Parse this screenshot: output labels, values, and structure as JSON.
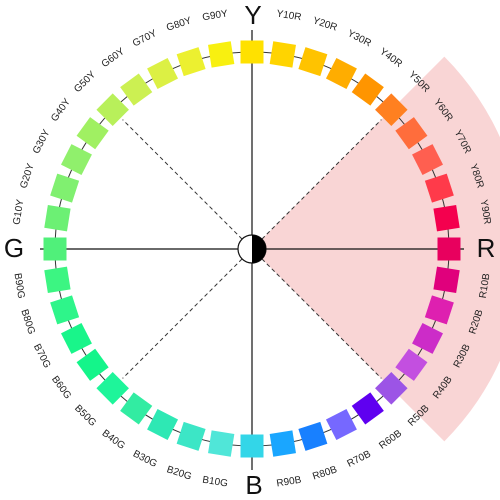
{
  "axes": {
    "top": "Y",
    "right": "R",
    "bottom": "B",
    "left": "G"
  },
  "highlight_sector": {
    "from_hue": "Y50R",
    "to_hue": "R50B",
    "color": "#f9d5d5"
  },
  "hues": [
    {
      "label": "",
      "color": "#ffe100"
    },
    {
      "label": "Y10R",
      "color": "#ffd400"
    },
    {
      "label": "Y20R",
      "color": "#ffc300"
    },
    {
      "label": "Y30R",
      "color": "#ffad00"
    },
    {
      "label": "Y40R",
      "color": "#ff9500"
    },
    {
      "label": "Y50R",
      "color": "#ff8020"
    },
    {
      "label": "Y60R",
      "color": "#ff6d3c"
    },
    {
      "label": "Y70R",
      "color": "#ff5f50"
    },
    {
      "label": "Y80R",
      "color": "#ff3a4a"
    },
    {
      "label": "Y90R",
      "color": "#f4004e"
    },
    {
      "label": "",
      "color": "#e8005e"
    },
    {
      "label": "R10B",
      "color": "#e0007c"
    },
    {
      "label": "R20B",
      "color": "#de20b0"
    },
    {
      "label": "R30B",
      "color": "#cc2cc8"
    },
    {
      "label": "R40B",
      "color": "#c34fe0"
    },
    {
      "label": "R50B",
      "color": "#9c54e6"
    },
    {
      "label": "R60B",
      "color": "#5f00f0"
    },
    {
      "label": "R70B",
      "color": "#7668ff"
    },
    {
      "label": "R80B",
      "color": "#1880ff"
    },
    {
      "label": "R90B",
      "color": "#1aa6ff"
    },
    {
      "label": "",
      "color": "#33d6e8"
    },
    {
      "label": "B10G",
      "color": "#50e6d8"
    },
    {
      "label": "B20G",
      "color": "#3ce6c6"
    },
    {
      "label": "B30G",
      "color": "#2ee8b4"
    },
    {
      "label": "B40G",
      "color": "#32eca2"
    },
    {
      "label": "B50G",
      "color": "#1ef59a"
    },
    {
      "label": "B60G",
      "color": "#14f58a"
    },
    {
      "label": "B70G",
      "color": "#19f58a"
    },
    {
      "label": "B80G",
      "color": "#2ef58a"
    },
    {
      "label": "B90G",
      "color": "#3cf582"
    },
    {
      "label": "",
      "color": "#50f07a"
    },
    {
      "label": "G10Y",
      "color": "#6cf074"
    },
    {
      "label": "G20Y",
      "color": "#80f070"
    },
    {
      "label": "G30Y",
      "color": "#90f06c"
    },
    {
      "label": "G40Y",
      "color": "#a0f062"
    },
    {
      "label": "G50Y",
      "color": "#b8f05a"
    },
    {
      "label": "G60Y",
      "color": "#ccf052"
    },
    {
      "label": "G70Y",
      "color": "#dcf044"
    },
    {
      "label": "G80Y",
      "color": "#ecf030"
    },
    {
      "label": "G90Y",
      "color": "#f8f010"
    }
  ]
}
